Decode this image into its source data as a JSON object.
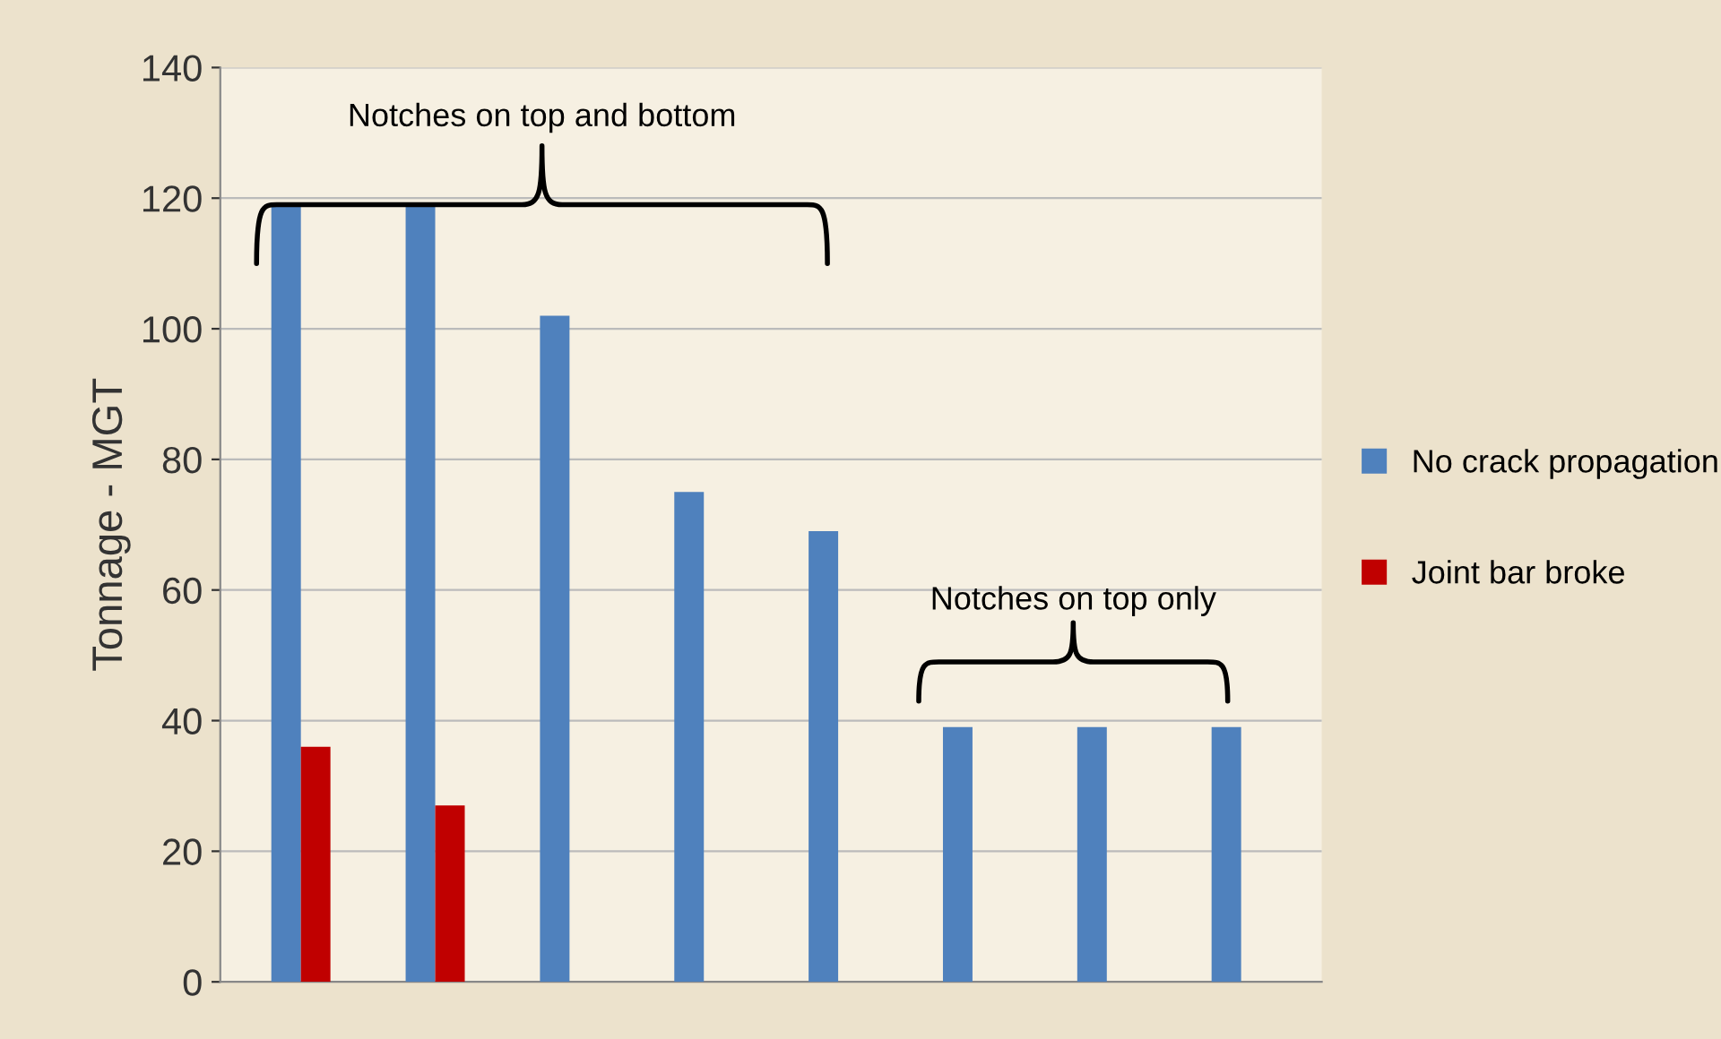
{
  "chart_data": {
    "type": "bar",
    "ylabel": "Tonnage - MGT",
    "categories": [
      null,
      null,
      null,
      null,
      null,
      null,
      null,
      null
    ],
    "series": [
      {
        "name": "No crack propagation",
        "color": "#4f81bd",
        "values": [
          119,
          119,
          102,
          75,
          69,
          39,
          39,
          39
        ]
      },
      {
        "name": "Joint bar broke",
        "color": "#c00000",
        "values": [
          36,
          27,
          null,
          null,
          null,
          null,
          null,
          null
        ]
      }
    ],
    "annotations": [
      "Notches on top and bottom",
      "Notches on top only"
    ],
    "ylim": [
      0,
      140
    ],
    "yticks": [
      0,
      20,
      40,
      60,
      80,
      100,
      120,
      140
    ],
    "grid": "y",
    "legend": "right"
  }
}
